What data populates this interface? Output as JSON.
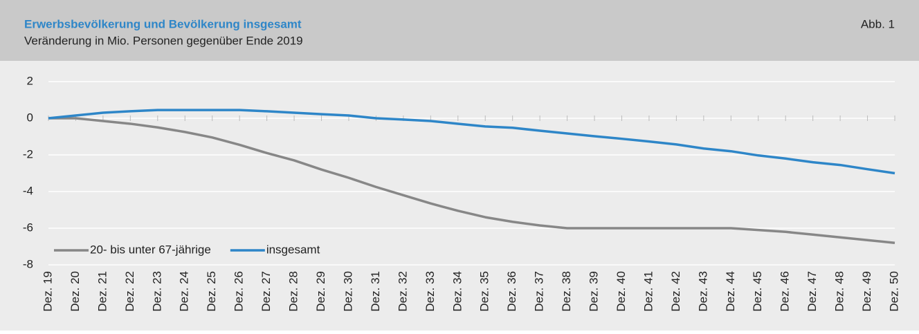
{
  "chart_data": {
    "type": "line",
    "title": "Erwerbsbevölkerung und Bevölkerung insgesamt",
    "subtitle": "Veränderung in Mio. Personen gegenüber Ende 2019",
    "figure_label": "Abb. 1",
    "categories": [
      "Dez. 19",
      "Dez. 20",
      "Dez. 21",
      "Dez. 22",
      "Dez. 23",
      "Dez. 24",
      "Dez. 25",
      "Dez. 26",
      "Dez. 27",
      "Dez. 28",
      "Dez. 29",
      "Dez. 30",
      "Dez. 31",
      "Dez. 32",
      "Dez. 33",
      "Dez. 34",
      "Dez. 35",
      "Dez. 36",
      "Dez. 37",
      "Dez. 38",
      "Dez. 39",
      "Dez. 40",
      "Dez. 41",
      "Dez. 42",
      "Dez. 43",
      "Dez. 44",
      "Dez. 45",
      "Dez. 46",
      "Dez. 47",
      "Dez. 48",
      "Dez. 49",
      "Dez. 50"
    ],
    "series": [
      {
        "name": "20- bis unter 67-jährige",
        "color": "#878787",
        "values": [
          0,
          0,
          -0.15,
          -0.3,
          -0.5,
          -0.75,
          -1.05,
          -1.45,
          -1.9,
          -2.3,
          -2.8,
          -3.25,
          -3.75,
          -4.2,
          -4.65,
          -5.05,
          -5.4,
          -5.65,
          -5.85,
          -6.0,
          -6.0,
          -6.0,
          -6.0,
          -6.0,
          -6.0,
          -6.0,
          -6.1,
          -6.2,
          -6.35,
          -6.5,
          -6.65,
          -6.8
        ]
      },
      {
        "name": "insgesamt",
        "color": "#2e86c8",
        "values": [
          0,
          0.15,
          0.3,
          0.38,
          0.45,
          0.45,
          0.45,
          0.45,
          0.38,
          0.3,
          0.22,
          0.15,
          0,
          -0.07,
          -0.15,
          -0.3,
          -0.45,
          -0.52,
          -0.68,
          -0.83,
          -0.98,
          -1.12,
          -1.27,
          -1.43,
          -1.65,
          -1.8,
          -2.03,
          -2.2,
          -2.4,
          -2.55,
          -2.78,
          -3.0
        ]
      }
    ],
    "ylim": [
      -8,
      2
    ],
    "yticks": [
      -8,
      -6,
      -4,
      -2,
      0,
      2
    ],
    "grid": true,
    "legend": "lower left"
  }
}
